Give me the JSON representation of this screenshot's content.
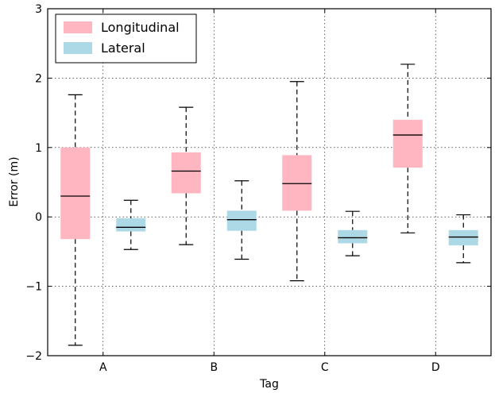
{
  "chart_data": {
    "type": "box",
    "xlabel": "Tag",
    "ylabel": "Error (m)",
    "categories": [
      "A",
      "B",
      "C",
      "D"
    ],
    "ylim": [
      -2,
      3
    ],
    "yticks": [
      -2,
      -1,
      0,
      1,
      2,
      3
    ],
    "ytick_labels": [
      "−2",
      "−1",
      "0",
      "1",
      "2",
      "3"
    ],
    "grid": true,
    "legend_position": "top-left",
    "series": [
      {
        "name": "Longitudinal",
        "color": "#ffb6c1",
        "boxes": [
          {
            "whislo": -1.85,
            "q1": -0.32,
            "med": 0.3,
            "q3": 1.0,
            "whishi": 1.76
          },
          {
            "whislo": -0.4,
            "q1": 0.34,
            "med": 0.66,
            "q3": 0.93,
            "whishi": 1.58
          },
          {
            "whislo": -0.92,
            "q1": 0.09,
            "med": 0.48,
            "q3": 0.89,
            "whishi": 1.95
          },
          {
            "whislo": -0.23,
            "q1": 0.71,
            "med": 1.18,
            "q3": 1.4,
            "whishi": 2.2
          }
        ]
      },
      {
        "name": "Lateral",
        "color": "#add8e6",
        "boxes": [
          {
            "whislo": -0.47,
            "q1": -0.21,
            "med": -0.15,
            "q3": -0.02,
            "whishi": 0.24
          },
          {
            "whislo": -0.61,
            "q1": -0.2,
            "med": -0.04,
            "q3": 0.09,
            "whishi": 0.52
          },
          {
            "whislo": -0.56,
            "q1": -0.38,
            "med": -0.3,
            "q3": -0.19,
            "whishi": 0.08
          },
          {
            "whislo": -0.66,
            "q1": -0.41,
            "med": -0.29,
            "q3": -0.19,
            "whishi": 0.03
          }
        ]
      }
    ]
  }
}
